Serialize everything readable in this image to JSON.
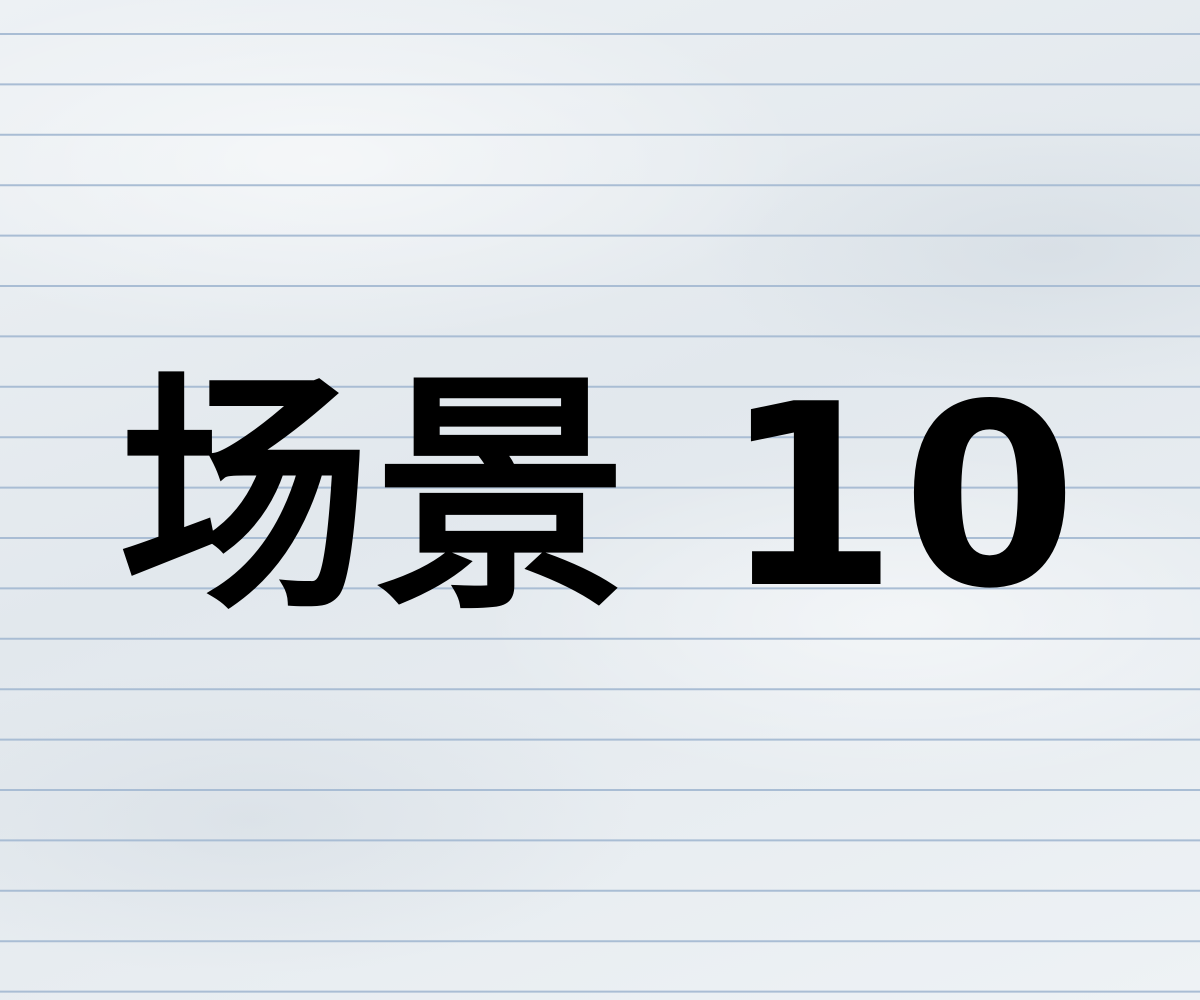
{
  "title": {
    "text": "场景 10"
  },
  "paper": {
    "background_color": "#e6ebef",
    "rule_color": "#a9bdd4",
    "text_color": "#000000"
  }
}
